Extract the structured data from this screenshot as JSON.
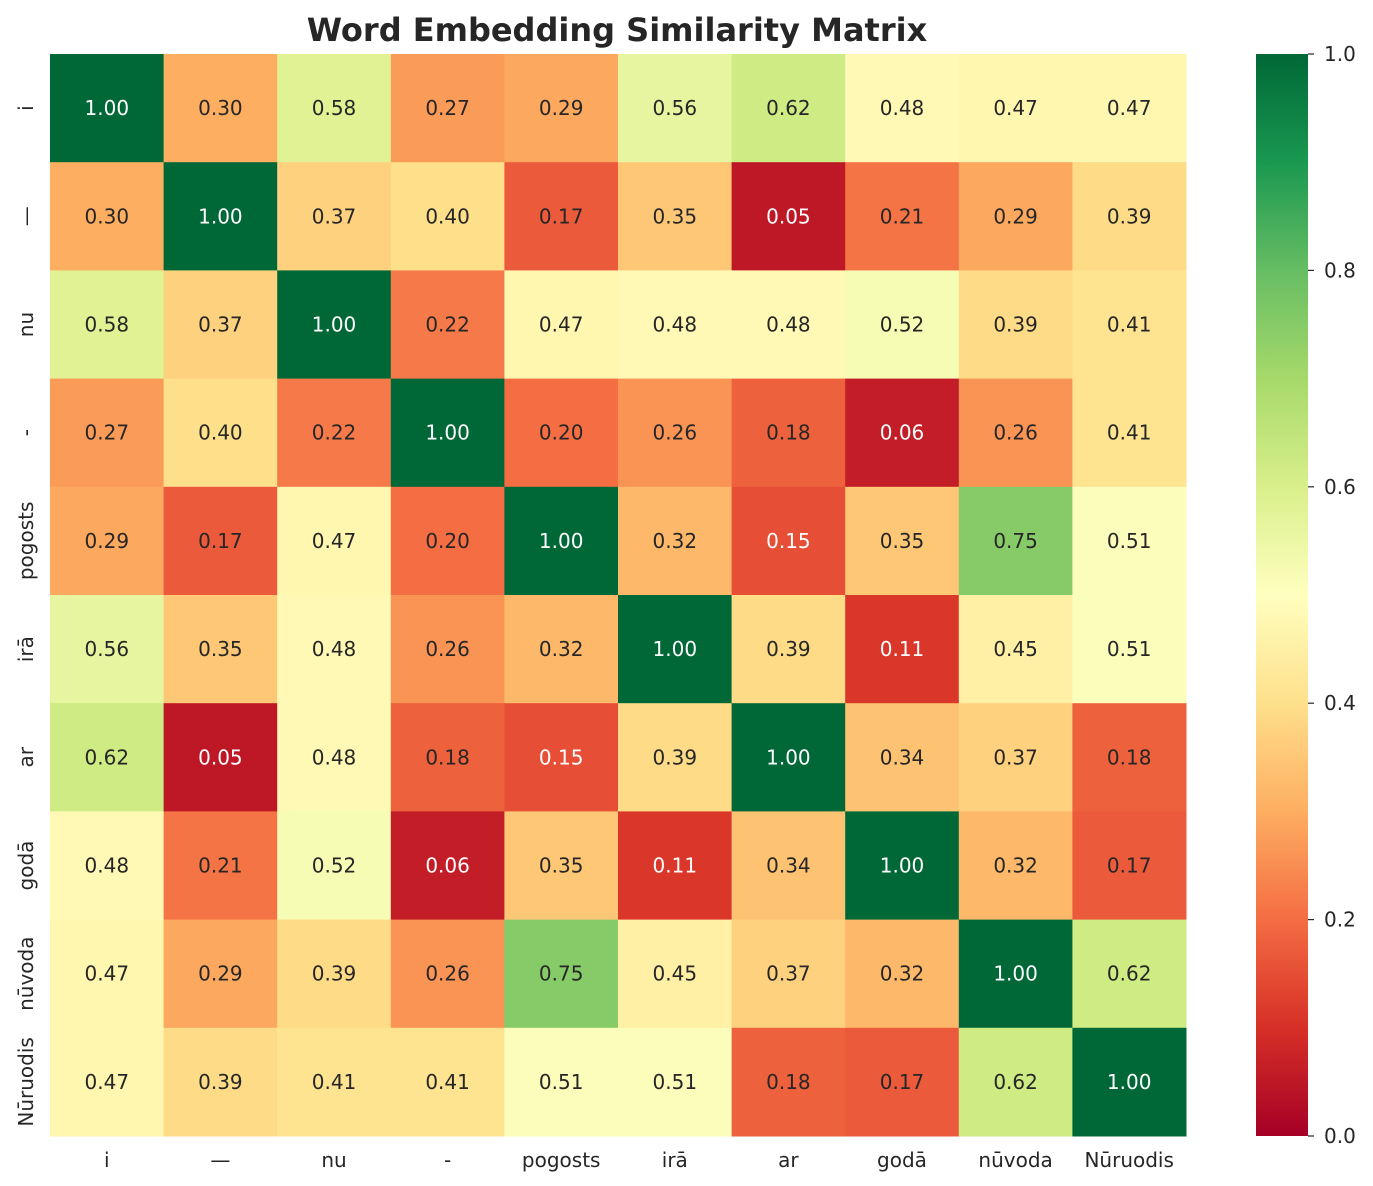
{
  "chart_data": {
    "type": "heatmap",
    "title": "Word Embedding Similarity Matrix",
    "xlabel": "",
    "ylabel": "",
    "x_labels": [
      "i",
      "—",
      "nu",
      "-",
      "pogosts",
      "irā",
      "ar",
      "godā",
      "nūvoda",
      "Nūruodis"
    ],
    "y_labels": [
      "i",
      "—",
      "nu",
      "-",
      "pogosts",
      "irā",
      "ar",
      "godā",
      "nūvoda",
      "Nūruodis"
    ],
    "values": [
      [
        1.0,
        0.3,
        0.58,
        0.27,
        0.29,
        0.56,
        0.62,
        0.48,
        0.47,
        0.47
      ],
      [
        0.3,
        1.0,
        0.37,
        0.4,
        0.17,
        0.35,
        0.05,
        0.21,
        0.29,
        0.39
      ],
      [
        0.58,
        0.37,
        1.0,
        0.22,
        0.47,
        0.48,
        0.48,
        0.52,
        0.39,
        0.41
      ],
      [
        0.27,
        0.4,
        0.22,
        1.0,
        0.2,
        0.26,
        0.18,
        0.06,
        0.26,
        0.41
      ],
      [
        0.29,
        0.17,
        0.47,
        0.2,
        1.0,
        0.32,
        0.15,
        0.35,
        0.75,
        0.51
      ],
      [
        0.56,
        0.35,
        0.48,
        0.26,
        0.32,
        1.0,
        0.39,
        0.11,
        0.45,
        0.51
      ],
      [
        0.62,
        0.05,
        0.48,
        0.18,
        0.15,
        0.39,
        1.0,
        0.34,
        0.37,
        0.18
      ],
      [
        0.48,
        0.21,
        0.52,
        0.06,
        0.35,
        0.11,
        0.34,
        1.0,
        0.32,
        0.17
      ],
      [
        0.47,
        0.29,
        0.39,
        0.26,
        0.75,
        0.45,
        0.37,
        0.32,
        1.0,
        0.62
      ],
      [
        0.47,
        0.39,
        0.41,
        0.41,
        0.51,
        0.51,
        0.18,
        0.17,
        0.62,
        1.0
      ]
    ],
    "value_format": "0.00",
    "colorbar": {
      "range": [
        0.0,
        1.0
      ],
      "ticks": [
        "0.0",
        "0.2",
        "0.4",
        "0.6",
        "0.8",
        "1.0"
      ],
      "colormap": "RdYlGn",
      "stops": [
        "#a50026",
        "#d73027",
        "#f46d43",
        "#fdae61",
        "#fee08b",
        "#ffffbf",
        "#d9ef8b",
        "#a6d96a",
        "#66bd63",
        "#1a9850",
        "#006837"
      ]
    },
    "grid": false,
    "legend": "colorbar-right"
  }
}
